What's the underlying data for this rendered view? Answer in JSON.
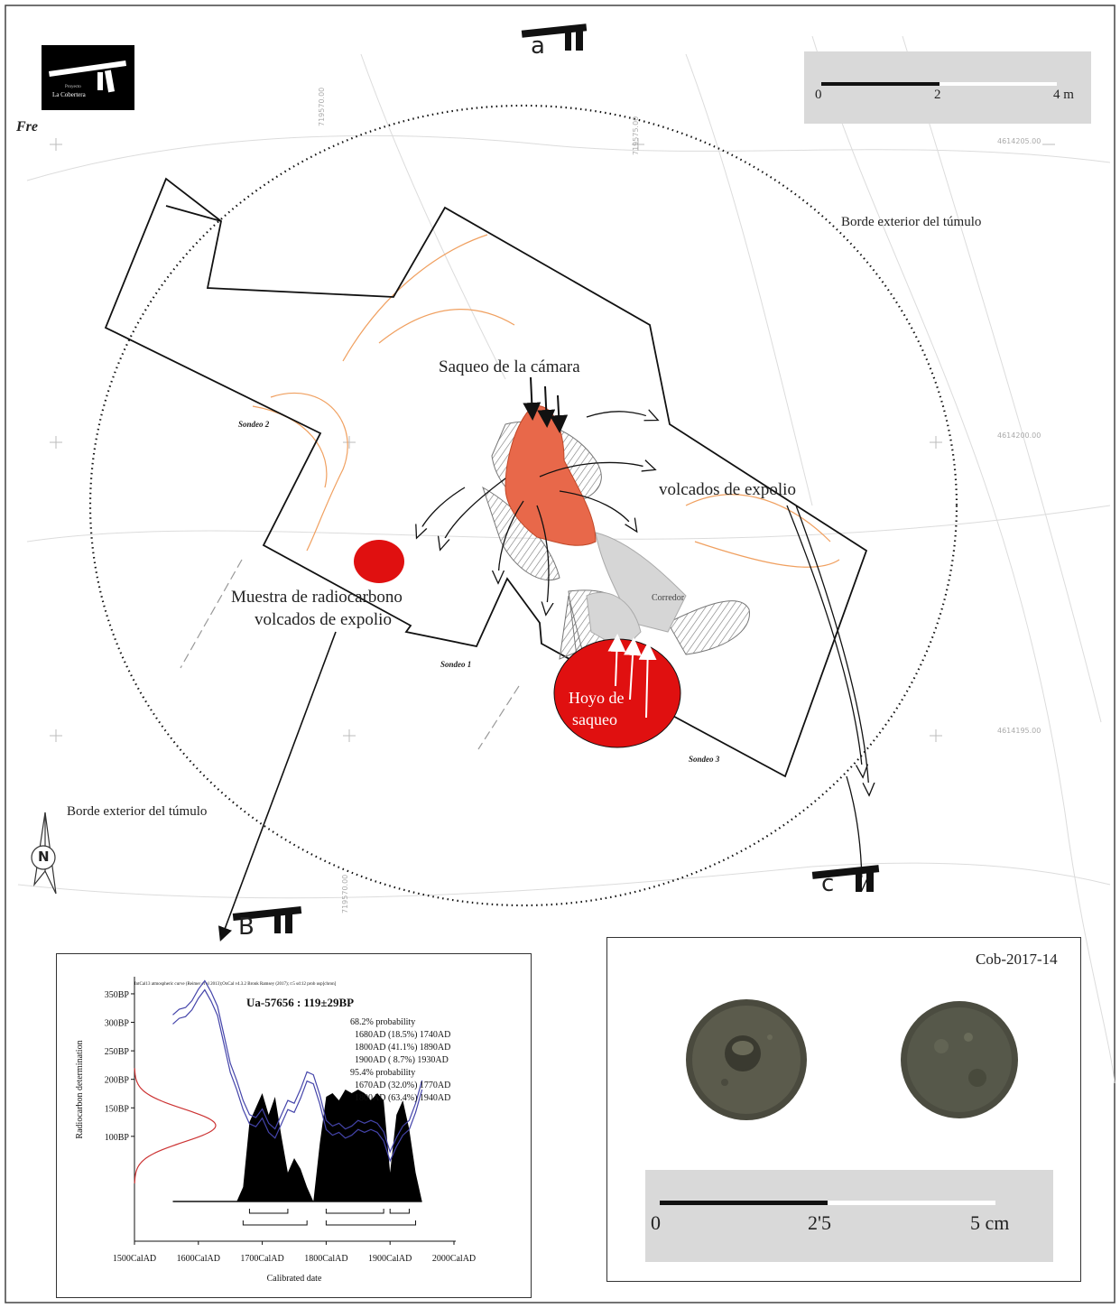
{
  "logo": {
    "brand_small": "Proyecto",
    "brand_name": "La Cobertera"
  },
  "signature": "Fre",
  "section_marks": {
    "a": "a",
    "b": "B",
    "c": "c"
  },
  "scale_map": {
    "ticks": [
      "0",
      "2",
      "4 m"
    ]
  },
  "coordinates": {
    "x1": "719570.00",
    "x2": "719575.00",
    "x3": "719570.00",
    "y1": "4614205.00",
    "y2": "4614200.00",
    "y3": "4614195.00"
  },
  "labels": {
    "tumulus_edge_top": "Borde exterior del túmulo",
    "tumulus_edge_bottom": "Borde exterior del túmulo",
    "saqueo_camara": "Saqueo de la cámara",
    "volcados": "volcados de expolio",
    "muestra_line1": "Muestra de radiocarbono",
    "muestra_line2": "volcados de expolio",
    "corredor": "Corredor",
    "hoyo_line1": "Hoyo de",
    "hoyo_line2": "saqueo",
    "sondeo1": "Sondeo 1",
    "sondeo2": "Sondeo 2",
    "sondeo3": "Sondeo 3"
  },
  "north": "N",
  "colors": {
    "loot_fill": "#e8684a",
    "sample_red": "#e01010",
    "cal_curve": "#4444aa",
    "probability_red": "#cc3333",
    "contour_orange": "#f0a060"
  },
  "chart_data": {
    "type": "area",
    "header": "IntCal13 atmospheric curve (Reimer et al 2013);OxCal v4.3.2 Bronk Ramsey (2017); r:5 sd:12 prob usp[chron]",
    "title": "Ua-57656 : 119±29BP",
    "xlabel": "Calibrated date",
    "ylabel": "Radiocarbon determination",
    "x_ticks": [
      "1500CalAD",
      "1600CalAD",
      "1700CalAD",
      "1800CalAD",
      "1900CalAD",
      "2000CalAD"
    ],
    "y_ticks": [
      "350BP",
      "300BP",
      "250BP",
      "200BP",
      "150BP",
      "100BP"
    ],
    "xlim": [
      1500,
      2000
    ],
    "ylim": [
      0,
      380
    ],
    "prob68_header": "68.2% probability",
    "prob68": [
      "1680AD (18.5%) 1740AD",
      "1800AD (41.1%) 1890AD",
      "1900AD ( 8.7%) 1930AD"
    ],
    "prob95_header": "95.4% probability",
    "prob95": [
      "1670AD (32.0%) 1770AD",
      "1800AD (63.4%) 1940AD"
    ],
    "ranges68": [
      [
        1680,
        1740
      ],
      [
        1800,
        1890
      ],
      [
        1900,
        1930
      ]
    ],
    "ranges95": [
      [
        1670,
        1770
      ],
      [
        1800,
        1940
      ]
    ],
    "calibration_curve": {
      "x": [
        1560,
        1570,
        1580,
        1590,
        1600,
        1610,
        1620,
        1630,
        1640,
        1650,
        1660,
        1670,
        1680,
        1690,
        1700,
        1710,
        1720,
        1730,
        1740,
        1750,
        1760,
        1770,
        1780,
        1790,
        1800,
        1810,
        1820,
        1830,
        1840,
        1850,
        1860,
        1870,
        1880,
        1890,
        1900,
        1910,
        1920,
        1930,
        1940,
        1950
      ],
      "y": [
        305,
        315,
        318,
        330,
        350,
        365,
        345,
        320,
        270,
        220,
        190,
        155,
        130,
        125,
        140,
        115,
        105,
        130,
        155,
        150,
        175,
        205,
        200,
        165,
        120,
        110,
        115,
        105,
        110,
        120,
        115,
        120,
        115,
        100,
        65,
        90,
        110,
        120,
        150,
        190
      ]
    },
    "calibrated_distribution": {
      "x": [
        1660,
        1670,
        1680,
        1690,
        1700,
        1710,
        1720,
        1730,
        1740,
        1750,
        1760,
        1770,
        1780,
        1790,
        1800,
        1810,
        1820,
        1830,
        1840,
        1850,
        1860,
        1870,
        1880,
        1890,
        1900,
        1910,
        1920,
        1930,
        1940,
        1950
      ],
      "y": [
        0,
        20,
        110,
        130,
        150,
        120,
        145,
        90,
        40,
        60,
        45,
        20,
        0,
        80,
        145,
        150,
        140,
        155,
        150,
        155,
        150,
        140,
        150,
        140,
        40,
        120,
        140,
        100,
        40,
        0
      ]
    },
    "measured_date": {
      "mean": 119,
      "sigma": 29
    }
  },
  "photo_panel": {
    "sample_id": "Cob-2017-14"
  },
  "scale_photo": {
    "ticks": [
      "0",
      "2'5",
      "5 cm"
    ]
  }
}
